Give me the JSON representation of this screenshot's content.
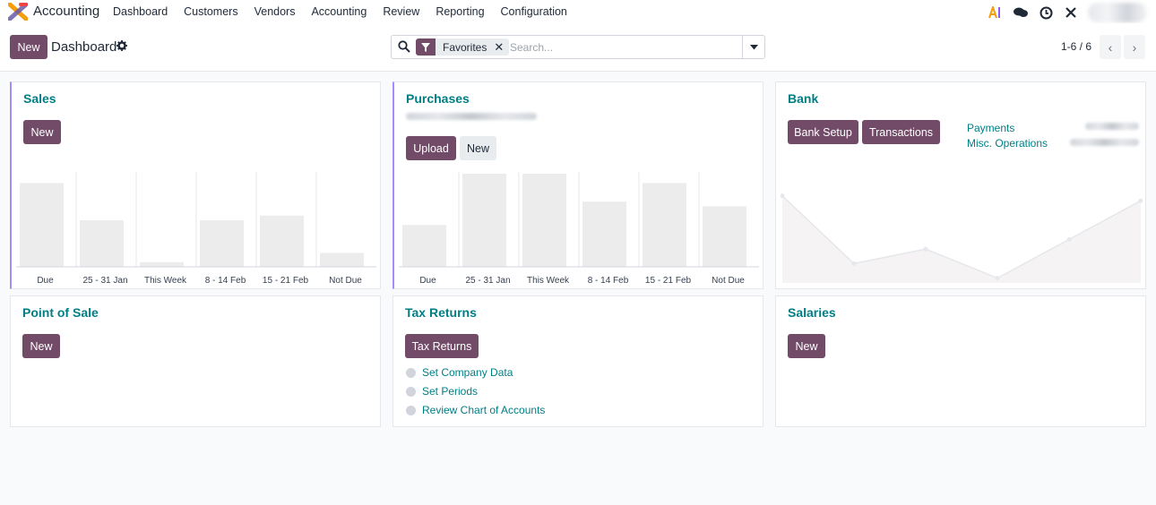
{
  "app": {
    "name": "Accounting",
    "menu": [
      "Dashboard",
      "Customers",
      "Vendors",
      "Accounting",
      "Review",
      "Reporting",
      "Configuration"
    ],
    "systray_icons": [
      "ai-icon",
      "chat-icon",
      "clock-icon",
      "tools-icon"
    ]
  },
  "control": {
    "new_label": "New",
    "title": "Dashboard",
    "search": {
      "facet": "Favorites",
      "placeholder": "Search..."
    },
    "pager": "1-6 / 6"
  },
  "colors": {
    "primary": "#714b67",
    "link": "#017e84",
    "accent_border": "#a78bfa",
    "bar": "#ececec"
  },
  "cards": {
    "sales": {
      "title": "Sales",
      "new_label": "New",
      "chart_data": {
        "type": "bar",
        "categories": [
          "Due",
          "25 - 31 Jan",
          "This Week",
          "8 - 14 Feb",
          "15 - 21 Feb",
          "Not Due"
        ],
        "values": [
          0.9,
          0.5,
          0.05,
          0.5,
          0.55,
          0.15
        ],
        "ylim": [
          0,
          1
        ]
      }
    },
    "purchases": {
      "title": "Purchases",
      "upload_label": "Upload",
      "new_label": "New",
      "chart_data": {
        "type": "bar",
        "categories": [
          "Due",
          "25 - 31 Jan",
          "This Week",
          "8 - 14 Feb",
          "15 - 21 Feb",
          "Not Due"
        ],
        "values": [
          0.45,
          1.0,
          1.0,
          0.7,
          0.9,
          0.65
        ],
        "ylim": [
          0,
          1
        ]
      }
    },
    "bank": {
      "title": "Bank",
      "setup_label": "Bank Setup",
      "transactions_label": "Transactions",
      "links": [
        "Payments",
        "Misc. Operations"
      ],
      "chart_data": {
        "type": "area",
        "values": [
          0.9,
          0.2,
          0.35,
          0.05,
          0.45,
          0.85
        ],
        "ylim": [
          0,
          1
        ]
      }
    },
    "pos": {
      "title": "Point of Sale",
      "new_label": "New"
    },
    "tax": {
      "title": "Tax Returns",
      "button_label": "Tax Returns",
      "steps": [
        "Set Company Data",
        "Set Periods",
        "Review Chart of Accounts"
      ]
    },
    "salaries": {
      "title": "Salaries",
      "new_label": "New"
    }
  }
}
